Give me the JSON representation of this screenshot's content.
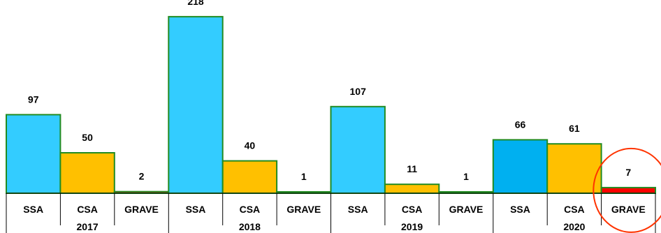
{
  "chart_data": {
    "type": "bar",
    "title": "",
    "xlabel": "",
    "ylabel": "",
    "ylim": [
      0,
      230
    ],
    "grid": false,
    "legend": "none",
    "groups": [
      {
        "year": "2017",
        "bars": [
          {
            "category": "SSA",
            "value": 97,
            "label": "97",
            "color": "#33ccff"
          },
          {
            "category": "CSA",
            "value": 50,
            "label": "50",
            "color": "#ffc000"
          },
          {
            "category": "GRAVE",
            "value": 2,
            "label": "2",
            "color": "#ff0000"
          }
        ]
      },
      {
        "year": "2018",
        "bars": [
          {
            "category": "SSA",
            "value": 218,
            "label": "218",
            "color": "#33ccff"
          },
          {
            "category": "CSA",
            "value": 40,
            "label": "40",
            "color": "#ffc000"
          },
          {
            "category": "GRAVE",
            "value": 1,
            "label": "1",
            "color": "#ff0000"
          }
        ]
      },
      {
        "year": "2019",
        "bars": [
          {
            "category": "SSA",
            "value": 107,
            "label": "107",
            "color": "#33ccff"
          },
          {
            "category": "CSA",
            "value": 11,
            "label": "11",
            "color": "#ffc000"
          },
          {
            "category": "GRAVE",
            "value": 1,
            "label": "1",
            "color": "#ff0000"
          }
        ]
      },
      {
        "year": "2020",
        "bars": [
          {
            "category": "SSA",
            "value": 66,
            "label": "66",
            "color": "#00b0f0"
          },
          {
            "category": "CSA",
            "value": 61,
            "label": "61",
            "color": "#ffc000"
          },
          {
            "category": "GRAVE",
            "value": 7,
            "label": "7",
            "color": "#ff0000"
          }
        ]
      }
    ],
    "bar_outline_color": "#228b22",
    "annotation": {
      "type": "circle",
      "target": "2020 GRAVE",
      "color": "#ff3300"
    }
  }
}
